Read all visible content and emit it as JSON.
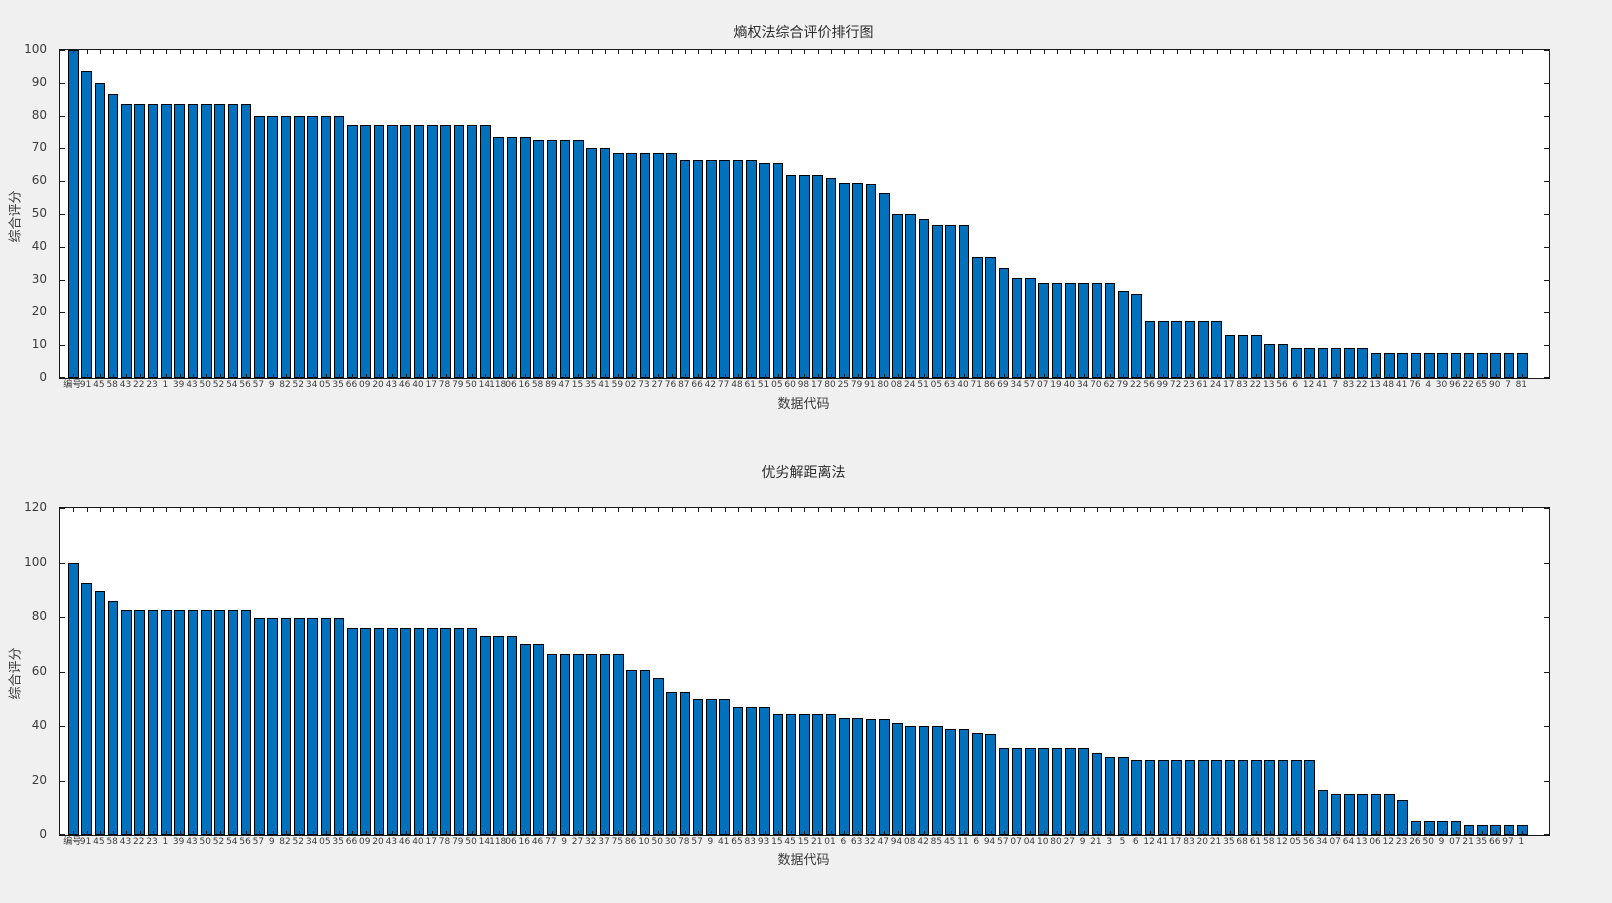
{
  "figure": {
    "background_color": "#f0f0f0",
    "plot_background_color": "#ffffff",
    "axis_color": "#1a1a1a",
    "text_color": "#3a3a3a",
    "bar_fill_color": "#0072BD",
    "bar_edge_color": "#000000"
  },
  "chart_data": [
    {
      "type": "bar",
      "title": "熵权法综合评价排行图",
      "xlabel": "数据代码",
      "ylabel": "综合评分",
      "ylim": [
        0,
        100
      ],
      "yticks": [
        0,
        10,
        20,
        30,
        40,
        50,
        60,
        70,
        80,
        90,
        100
      ],
      "grid": false,
      "legend": "none",
      "bar_color": "#0072BD",
      "categories": [
        "编号",
        "91",
        "45",
        "58",
        "43",
        "22",
        "23",
        "1",
        "39",
        "43",
        "50",
        "52",
        "54",
        "56",
        "57",
        "9",
        "82",
        "52",
        "34",
        "05",
        "35",
        "66",
        "09",
        "20",
        "43",
        "46",
        "40",
        "17",
        "78",
        "79",
        "50",
        "14",
        "118",
        "06",
        "16",
        "58",
        "89",
        "47",
        "15",
        "35",
        "41",
        "59",
        "02",
        "73",
        "27",
        "76",
        "87",
        "66",
        "42",
        "77",
        "48",
        "61",
        "51",
        "05",
        "60",
        "98",
        "17",
        "80",
        "25",
        "79",
        "91",
        "80",
        "08",
        "24",
        "51",
        "05",
        "63",
        "40",
        "71",
        "86",
        "69",
        "34",
        "57",
        "07",
        "19",
        "40",
        "34",
        "70",
        "62",
        "79",
        "22",
        "56",
        "99",
        "72",
        "23",
        "61",
        "24",
        "17",
        "83",
        "22",
        "13",
        "56",
        "6",
        "12",
        "41",
        "7",
        "83",
        "22",
        "13",
        "48",
        "41",
        "76",
        "4",
        "30",
        "96",
        "22",
        "65",
        "90",
        "7",
        "81"
      ],
      "values": [
        100,
        93.5,
        90,
        86.5,
        83.5,
        83.5,
        83.5,
        83.5,
        83.5,
        83.5,
        83.5,
        83.5,
        83.5,
        83.5,
        80,
        80,
        80,
        80,
        80,
        80,
        80,
        77,
        77,
        77,
        77,
        77,
        77,
        77,
        77,
        77,
        77,
        77,
        73.5,
        73.5,
        73.5,
        72.5,
        72.5,
        72.5,
        72.5,
        70,
        70,
        68.5,
        68.5,
        68.5,
        68.5,
        68.5,
        66.5,
        66.5,
        66.5,
        66.5,
        66.5,
        66.5,
        65.5,
        65.5,
        62,
        62,
        62,
        61,
        59.5,
        59.5,
        59,
        56.5,
        50,
        50,
        48.5,
        46.5,
        46.5,
        46.5,
        37,
        37,
        33.5,
        30.5,
        30.5,
        29,
        29,
        29,
        29,
        29,
        29,
        26.5,
        25.5,
        17.5,
        17.5,
        17.5,
        17.5,
        17.5,
        17.5,
        13,
        13,
        13,
        10.5,
        10.5,
        9,
        9,
        9,
        9,
        9,
        9,
        7.5,
        7.5,
        7.5,
        7.5,
        7.5,
        7.5,
        7.5,
        7.5,
        7.5,
        7.5,
        7.5,
        7.5
      ]
    },
    {
      "type": "bar",
      "title": "优劣解距离法",
      "xlabel": "数据代码",
      "ylabel": "综合评分",
      "ylim": [
        0,
        120
      ],
      "yticks": [
        0,
        20,
        40,
        60,
        80,
        100,
        120
      ],
      "grid": false,
      "legend": "none",
      "bar_color": "#0072BD",
      "categories": [
        "编号",
        "91",
        "45",
        "58",
        "43",
        "22",
        "23",
        "1",
        "39",
        "43",
        "50",
        "52",
        "54",
        "56",
        "57",
        "9",
        "82",
        "52",
        "34",
        "05",
        "35",
        "66",
        "09",
        "20",
        "43",
        "46",
        "40",
        "17",
        "78",
        "79",
        "50",
        "14",
        "118",
        "06",
        "16",
        "46",
        "77",
        "9",
        "27",
        "32",
        "37",
        "75",
        "86",
        "10",
        "50",
        "30",
        "78",
        "57",
        "9",
        "41",
        "65",
        "83",
        "93",
        "15",
        "45",
        "15",
        "21",
        "01",
        "6",
        "63",
        "32",
        "47",
        "94",
        "08",
        "42",
        "85",
        "45",
        "11",
        "6",
        "94",
        "57",
        "07",
        "04",
        "10",
        "80",
        "27",
        "9",
        "21",
        "3",
        "5",
        "6",
        "12",
        "41",
        "17",
        "83",
        "20",
        "21",
        "35",
        "68",
        "61",
        "58",
        "12",
        "05",
        "56",
        "34",
        "07",
        "64",
        "13",
        "06",
        "12",
        "23",
        "26",
        "50",
        "9",
        "07",
        "21",
        "35",
        "66",
        "97",
        "1"
      ],
      "values": [
        100,
        92.5,
        89.5,
        86,
        82.5,
        82.5,
        82.5,
        82.5,
        82.5,
        82.5,
        82.5,
        82.5,
        82.5,
        82.5,
        79.5,
        79.5,
        79.5,
        79.5,
        79.5,
        79.5,
        79.5,
        76,
        76,
        76,
        76,
        76,
        76,
        76,
        76,
        76,
        76,
        73,
        73,
        73,
        70,
        70,
        66.5,
        66.5,
        66.5,
        66.5,
        66.5,
        66.5,
        60.5,
        60.5,
        57.5,
        52.5,
        52.5,
        50,
        50,
        50,
        47,
        47,
        47,
        44.5,
        44.5,
        44.5,
        44.5,
        44.5,
        43,
        43,
        42.5,
        42.5,
        41,
        40,
        40,
        40,
        39,
        39,
        37.5,
        37,
        32,
        32,
        32,
        32,
        32,
        32,
        32,
        30,
        28.5,
        28.5,
        27.5,
        27.5,
        27.5,
        27.5,
        27.5,
        27.5,
        27.5,
        27.5,
        27.5,
        27.5,
        27.5,
        27.5,
        27.5,
        27.5,
        16.5,
        15,
        15,
        15,
        15,
        15,
        13,
        5,
        5,
        5,
        5,
        3.5,
        3.5,
        3.5,
        3.5,
        3.5
      ]
    }
  ]
}
